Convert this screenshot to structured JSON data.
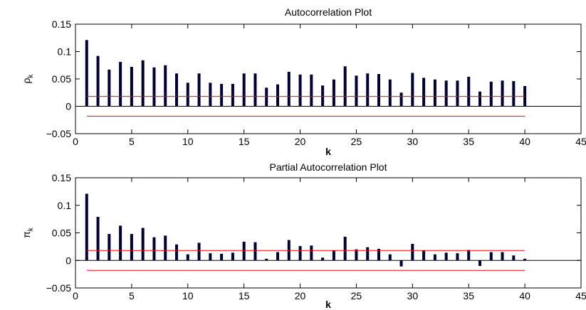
{
  "chart_data": [
    {
      "type": "bar",
      "title": "Autocorrelation Plot",
      "xlabel": "k",
      "ylabel": "ρ",
      "ylabel_sub": "k",
      "xlim": [
        0,
        45
      ],
      "ylim": [
        -0.05,
        0.15
      ],
      "xticks": [
        0,
        5,
        10,
        15,
        20,
        25,
        30,
        35,
        40,
        45
      ],
      "yticks": [
        -0.05,
        0,
        0.05,
        0.1,
        0.15
      ],
      "ytick_labels": [
        "−0.05",
        "0",
        "0.05",
        "0.1",
        "0.15"
      ],
      "confidence_bounds": {
        "upper": 0.018,
        "lower": -0.018,
        "x_range": [
          1,
          40
        ],
        "color": "#ff0000"
      },
      "bar_color": "#000033",
      "x": [
        1,
        2,
        3,
        4,
        5,
        6,
        7,
        8,
        9,
        10,
        11,
        12,
        13,
        14,
        15,
        16,
        17,
        18,
        19,
        20,
        21,
        22,
        23,
        24,
        25,
        26,
        27,
        28,
        29,
        30,
        31,
        32,
        33,
        34,
        35,
        36,
        37,
        38,
        39,
        40
      ],
      "values": [
        0.121,
        0.092,
        0.067,
        0.081,
        0.072,
        0.084,
        0.071,
        0.075,
        0.06,
        0.043,
        0.06,
        0.043,
        0.041,
        0.041,
        0.06,
        0.06,
        0.034,
        0.04,
        0.063,
        0.058,
        0.058,
        0.038,
        0.049,
        0.073,
        0.056,
        0.06,
        0.059,
        0.049,
        0.025,
        0.061,
        0.052,
        0.049,
        0.047,
        0.047,
        0.054,
        0.027,
        0.045,
        0.047,
        0.046,
        0.037
      ]
    },
    {
      "type": "bar",
      "title": "Partial Autocorrelation Plot",
      "xlabel": "k",
      "ylabel": "π",
      "ylabel_sub": "k",
      "xlim": [
        0,
        45
      ],
      "ylim": [
        -0.05,
        0.15
      ],
      "xticks": [
        0,
        5,
        10,
        15,
        20,
        25,
        30,
        35,
        40,
        45
      ],
      "yticks": [
        -0.05,
        0,
        0.05,
        0.1,
        0.15
      ],
      "ytick_labels": [
        "−0.05",
        "0",
        "0.05",
        "0.1",
        "0.15"
      ],
      "confidence_bounds": {
        "upper": 0.018,
        "lower": -0.018,
        "x_range": [
          1,
          40
        ],
        "color": "#ff0000"
      },
      "bar_color": "#000033",
      "x": [
        1,
        2,
        3,
        4,
        5,
        6,
        7,
        8,
        9,
        10,
        11,
        12,
        13,
        14,
        15,
        16,
        17,
        18,
        19,
        20,
        21,
        22,
        23,
        24,
        25,
        26,
        27,
        28,
        29,
        30,
        31,
        32,
        33,
        34,
        35,
        36,
        37,
        38,
        39,
        40
      ],
      "values": [
        0.121,
        0.079,
        0.048,
        0.063,
        0.048,
        0.059,
        0.042,
        0.045,
        0.029,
        0.011,
        0.032,
        0.013,
        0.012,
        0.014,
        0.034,
        0.033,
        0.003,
        0.015,
        0.037,
        0.026,
        0.027,
        0.005,
        0.018,
        0.043,
        0.02,
        0.024,
        0.021,
        0.011,
        -0.011,
        0.03,
        0.018,
        0.011,
        0.014,
        0.013,
        0.019,
        -0.01,
        0.015,
        0.015,
        0.009,
        0.003
      ]
    }
  ]
}
